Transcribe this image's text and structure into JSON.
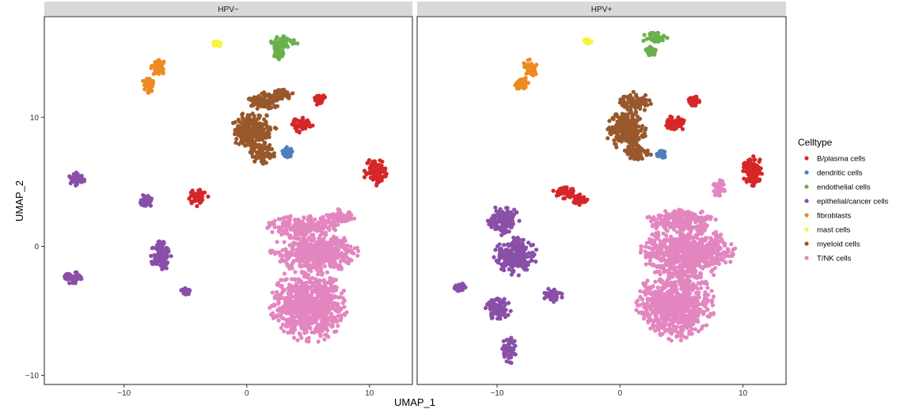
{
  "chart_data": {
    "type": "scatter",
    "xlabel": "UMAP_1",
    "ylabel": "UMAP_2",
    "xlim": [
      -16.5,
      13.5
    ],
    "ylim": [
      -10.7,
      17.8
    ],
    "x_ticks": [
      -10,
      0,
      10
    ],
    "y_ticks": [
      -10,
      0,
      10
    ],
    "x_tick_labels": [
      "−10",
      "0",
      "10"
    ],
    "y_tick_labels": [
      "−10",
      "0",
      "10"
    ],
    "grid": false,
    "legend": {
      "title": "Celltype",
      "placement": "right",
      "entries": [
        {
          "label": "B/plasma cells",
          "color": "#d62728"
        },
        {
          "label": "dendritic cells",
          "color": "#4f7fbf"
        },
        {
          "label": "endothelial cells",
          "color": "#6ab04c"
        },
        {
          "label": "epithelial/cancer cells",
          "color": "#8a4fa8"
        },
        {
          "label": "fibroblasts",
          "color": "#ee8a22"
        },
        {
          "label": "mast cells",
          "color": "#f5f542"
        },
        {
          "label": "myeloid cells",
          "color": "#98582c"
        },
        {
          "label": "T/NK cells",
          "color": "#e386c0"
        }
      ]
    },
    "panels": [
      {
        "strip": "HPV−",
        "clusters": [
          {
            "celltype": "T/NK cells",
            "center": [
              5,
              -4.5
            ],
            "spread": [
              2.8,
              2.6
            ]
          },
          {
            "celltype": "T/NK cells",
            "center": [
              5.5,
              -0.5
            ],
            "spread": [
              3.2,
              1.4
            ]
          },
          {
            "celltype": "T/NK cells",
            "center": [
              4.5,
              1.5
            ],
            "spread": [
              2.5,
              0.8
            ]
          },
          {
            "celltype": "T/NK cells",
            "center": [
              7.5,
              2.2
            ],
            "spread": [
              1.2,
              0.6
            ]
          },
          {
            "celltype": "myeloid cells",
            "center": [
              0.5,
              9
            ],
            "spread": [
              1.7,
              1.3
            ]
          },
          {
            "celltype": "myeloid cells",
            "center": [
              1.5,
              11.2
            ],
            "spread": [
              1.2,
              0.7
            ]
          },
          {
            "celltype": "myeloid cells",
            "center": [
              2.8,
              11.8
            ],
            "spread": [
              1,
              0.4
            ]
          },
          {
            "celltype": "myeloid cells",
            "center": [
              1.2,
              7.2
            ],
            "spread": [
              1,
              0.7
            ]
          },
          {
            "celltype": "B/plasma cells",
            "center": [
              10.5,
              5.8
            ],
            "spread": [
              0.9,
              1.0
            ]
          },
          {
            "celltype": "B/plasma cells",
            "center": [
              -4,
              3.8
            ],
            "spread": [
              0.8,
              0.6
            ]
          },
          {
            "celltype": "B/plasma cells",
            "center": [
              6,
              11.3
            ],
            "spread": [
              0.5,
              0.4
            ]
          },
          {
            "celltype": "B/plasma cells",
            "center": [
              4.5,
              9.5
            ],
            "spread": [
              0.8,
              0.6
            ]
          },
          {
            "celltype": "dendritic cells",
            "center": [
              3.3,
              7.3
            ],
            "spread": [
              0.4,
              0.35
            ]
          },
          {
            "celltype": "endothelial cells",
            "center": [
              3,
              15.8
            ],
            "spread": [
              1.0,
              0.5
            ]
          },
          {
            "celltype": "endothelial cells",
            "center": [
              2.6,
              15.0
            ],
            "spread": [
              0.4,
              0.5
            ]
          },
          {
            "celltype": "fibroblasts",
            "center": [
              -7.2,
              13.8
            ],
            "spread": [
              0.6,
              0.6
            ]
          },
          {
            "celltype": "fibroblasts",
            "center": [
              -8,
              12.5
            ],
            "spread": [
              0.5,
              0.6
            ]
          },
          {
            "celltype": "mast cells",
            "center": [
              -2.4,
              15.7
            ],
            "spread": [
              0.3,
              0.25
            ]
          },
          {
            "celltype": "epithelial/cancer cells",
            "center": [
              -13.8,
              5.2
            ],
            "spread": [
              0.8,
              0.5
            ]
          },
          {
            "celltype": "epithelial/cancer cells",
            "center": [
              -14.2,
              -2.5
            ],
            "spread": [
              0.8,
              0.5
            ]
          },
          {
            "celltype": "epithelial/cancer cells",
            "center": [
              -8.2,
              3.5
            ],
            "spread": [
              0.5,
              0.5
            ]
          },
          {
            "celltype": "epithelial/cancer cells",
            "center": [
              -7,
              -0.6
            ],
            "spread": [
              0.8,
              1.1
            ]
          },
          {
            "celltype": "epithelial/cancer cells",
            "center": [
              -5,
              -3.5
            ],
            "spread": [
              0.35,
              0.3
            ]
          }
        ]
      },
      {
        "strip": "HPV+",
        "clusters": [
          {
            "celltype": "T/NK cells",
            "center": [
              4.5,
              -4.5
            ],
            "spread": [
              2.8,
              2.5
            ]
          },
          {
            "celltype": "T/NK cells",
            "center": [
              5.5,
              -0.5
            ],
            "spread": [
              3.5,
              1.8
            ]
          },
          {
            "celltype": "T/NK cells",
            "center": [
              5,
              2
            ],
            "spread": [
              2.5,
              0.8
            ]
          },
          {
            "celltype": "T/NK cells",
            "center": [
              8,
              4.5
            ],
            "spread": [
              0.5,
              0.6
            ]
          },
          {
            "celltype": "myeloid cells",
            "center": [
              0.5,
              9
            ],
            "spread": [
              1.5,
              1.4
            ]
          },
          {
            "celltype": "myeloid cells",
            "center": [
              1.2,
              11.2
            ],
            "spread": [
              1.2,
              0.7
            ]
          },
          {
            "celltype": "myeloid cells",
            "center": [
              1.5,
              7.2
            ],
            "spread": [
              0.9,
              0.6
            ]
          },
          {
            "celltype": "B/plasma cells",
            "center": [
              10.8,
              5.8
            ],
            "spread": [
              0.8,
              1.1
            ]
          },
          {
            "celltype": "B/plasma cells",
            "center": [
              -4.5,
              4.2
            ],
            "spread": [
              0.9,
              0.5
            ]
          },
          {
            "celltype": "B/plasma cells",
            "center": [
              -3.2,
              3.6
            ],
            "spread": [
              0.6,
              0.4
            ]
          },
          {
            "celltype": "B/plasma cells",
            "center": [
              6,
              11.2
            ],
            "spread": [
              0.5,
              0.4
            ]
          },
          {
            "celltype": "B/plasma cells",
            "center": [
              4.5,
              9.5
            ],
            "spread": [
              0.8,
              0.6
            ]
          },
          {
            "celltype": "dendritic cells",
            "center": [
              3.4,
              7.2
            ],
            "spread": [
              0.4,
              0.3
            ]
          },
          {
            "celltype": "endothelial cells",
            "center": [
              2.8,
              16.2
            ],
            "spread": [
              1.0,
              0.4
            ]
          },
          {
            "celltype": "endothelial cells",
            "center": [
              2.5,
              15.1
            ],
            "spread": [
              0.4,
              0.4
            ]
          },
          {
            "celltype": "fibroblasts",
            "center": [
              -7.3,
              13.8
            ],
            "spread": [
              0.6,
              0.6
            ]
          },
          {
            "celltype": "fibroblasts",
            "center": [
              -8,
              12.6
            ],
            "spread": [
              0.5,
              0.5
            ]
          },
          {
            "celltype": "mast cells",
            "center": [
              -2.6,
              15.9
            ],
            "spread": [
              0.3,
              0.25
            ]
          },
          {
            "celltype": "epithelial/cancer cells",
            "center": [
              -8.5,
              -0.8
            ],
            "spread": [
              1.6,
              1.3
            ]
          },
          {
            "celltype": "epithelial/cancer cells",
            "center": [
              -9.5,
              2
            ],
            "spread": [
              1.2,
              1.0
            ]
          },
          {
            "celltype": "epithelial/cancer cells",
            "center": [
              -10,
              -4.8
            ],
            "spread": [
              1.0,
              0.8
            ]
          },
          {
            "celltype": "epithelial/cancer cells",
            "center": [
              -9,
              -8
            ],
            "spread": [
              0.5,
              1.0
            ]
          },
          {
            "celltype": "epithelial/cancer cells",
            "center": [
              -5.5,
              -3.8
            ],
            "spread": [
              0.7,
              0.5
            ]
          },
          {
            "celltype": "epithelial/cancer cells",
            "center": [
              -13,
              -3.2
            ],
            "spread": [
              0.4,
              0.3
            ]
          }
        ]
      }
    ]
  }
}
